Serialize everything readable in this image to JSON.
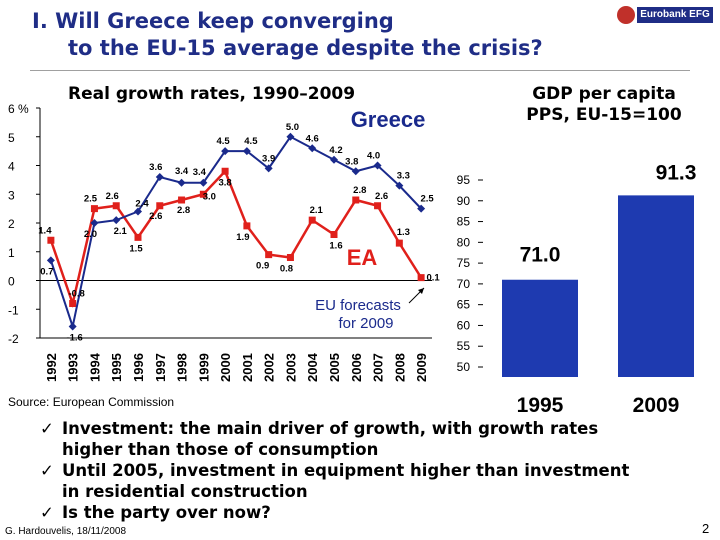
{
  "header": {
    "title_line1": "I.  Will Greece keep converging",
    "title_line2": "to the EU-15 average despite the crisis?",
    "logo_text": "Eurobank EFG"
  },
  "left_subtitle": "Real growth rates, 1990–2009",
  "right_subtitle_line1": "GDP per capita",
  "right_subtitle_line2": "PPS, EU-15=100",
  "colors": {
    "greece": "#1a2a8c",
    "ea": "#e0201b",
    "bar": "#1e3ab0",
    "title": "#1f2d86"
  },
  "chart_data": [
    {
      "type": "line",
      "title": "Real growth rates, 1990–2009",
      "ylabel": "%",
      "ytick_labels": [
        "6",
        "5",
        "4",
        "3",
        "2",
        "1",
        "0",
        "-1",
        "-2"
      ],
      "yticks": [
        6,
        5,
        4,
        3,
        2,
        1,
        0,
        -1,
        -2
      ],
      "ylim": [
        -2,
        6
      ],
      "x": [
        "1992",
        "1993",
        "1994",
        "1995",
        "1996",
        "1997",
        "1998",
        "1999",
        "2000",
        "2001",
        "2002",
        "2003",
        "2004",
        "2005",
        "2006",
        "2007",
        "2008",
        "2009"
      ],
      "series": [
        {
          "name": "Greece",
          "values": [
            0.7,
            -1.6,
            2.0,
            2.1,
            2.4,
            3.6,
            3.4,
            3.4,
            4.5,
            4.5,
            3.9,
            5.0,
            4.6,
            4.2,
            3.8,
            4.0,
            3.3,
            2.5
          ],
          "labels": [
            "0.7",
            "-1.6",
            "2.0",
            "2.1",
            "2.4",
            "3.6",
            "3.4",
            "3.4",
            "4.5",
            "4.5",
            "3.9",
            "5.0",
            "4.6",
            "4.2",
            "3.8",
            "4.0",
            "3.3",
            "2.5"
          ]
        },
        {
          "name": "EA",
          "values": [
            1.4,
            -0.8,
            2.5,
            2.6,
            1.5,
            2.6,
            2.8,
            3.0,
            3.8,
            1.9,
            0.9,
            0.8,
            2.1,
            1.6,
            2.8,
            2.6,
            1.3,
            0.1
          ],
          "labels": [
            "1.4",
            "-0.8",
            "2.5",
            "2.6",
            "1.5",
            "2.6",
            "2.8",
            "3.0",
            "3.8",
            "1.9",
            "0.9",
            "0.8",
            "2.1",
            "1.6",
            "2.8",
            "2.6",
            "1.3",
            "0.1"
          ]
        }
      ],
      "annotation_line1": "EU forecasts",
      "annotation_line2": "for 2009"
    },
    {
      "type": "bar",
      "title": "GDP per capita PPS, EU-15=100",
      "categories": [
        "1995",
        "2009"
      ],
      "values": [
        71.0,
        91.3
      ],
      "value_labels": [
        "71.0",
        "91.3"
      ],
      "ylim": [
        50,
        95
      ],
      "yticks": [
        50,
        55,
        60,
        65,
        70,
        75,
        80,
        85,
        90,
        95
      ],
      "ytick_labels": [
        "50",
        "55",
        "60",
        "65",
        "70",
        "75",
        "80",
        "85",
        "90",
        "95"
      ]
    }
  ],
  "source": "Source: European Commission",
  "bullets": [
    {
      "mark": "✓",
      "line1": "Investment: the main driver of growth, with growth rates",
      "line2": "higher than those of consumption"
    },
    {
      "mark": "✓",
      "line1": "Until 2005, investment in equipment higher than investment",
      "line2": "in residential construction"
    },
    {
      "mark": "✓",
      "line1": "Is the party over now?",
      "line2": ""
    }
  ],
  "footer": "G. Hardouvelis, 18/11/2008",
  "page_number": "2"
}
